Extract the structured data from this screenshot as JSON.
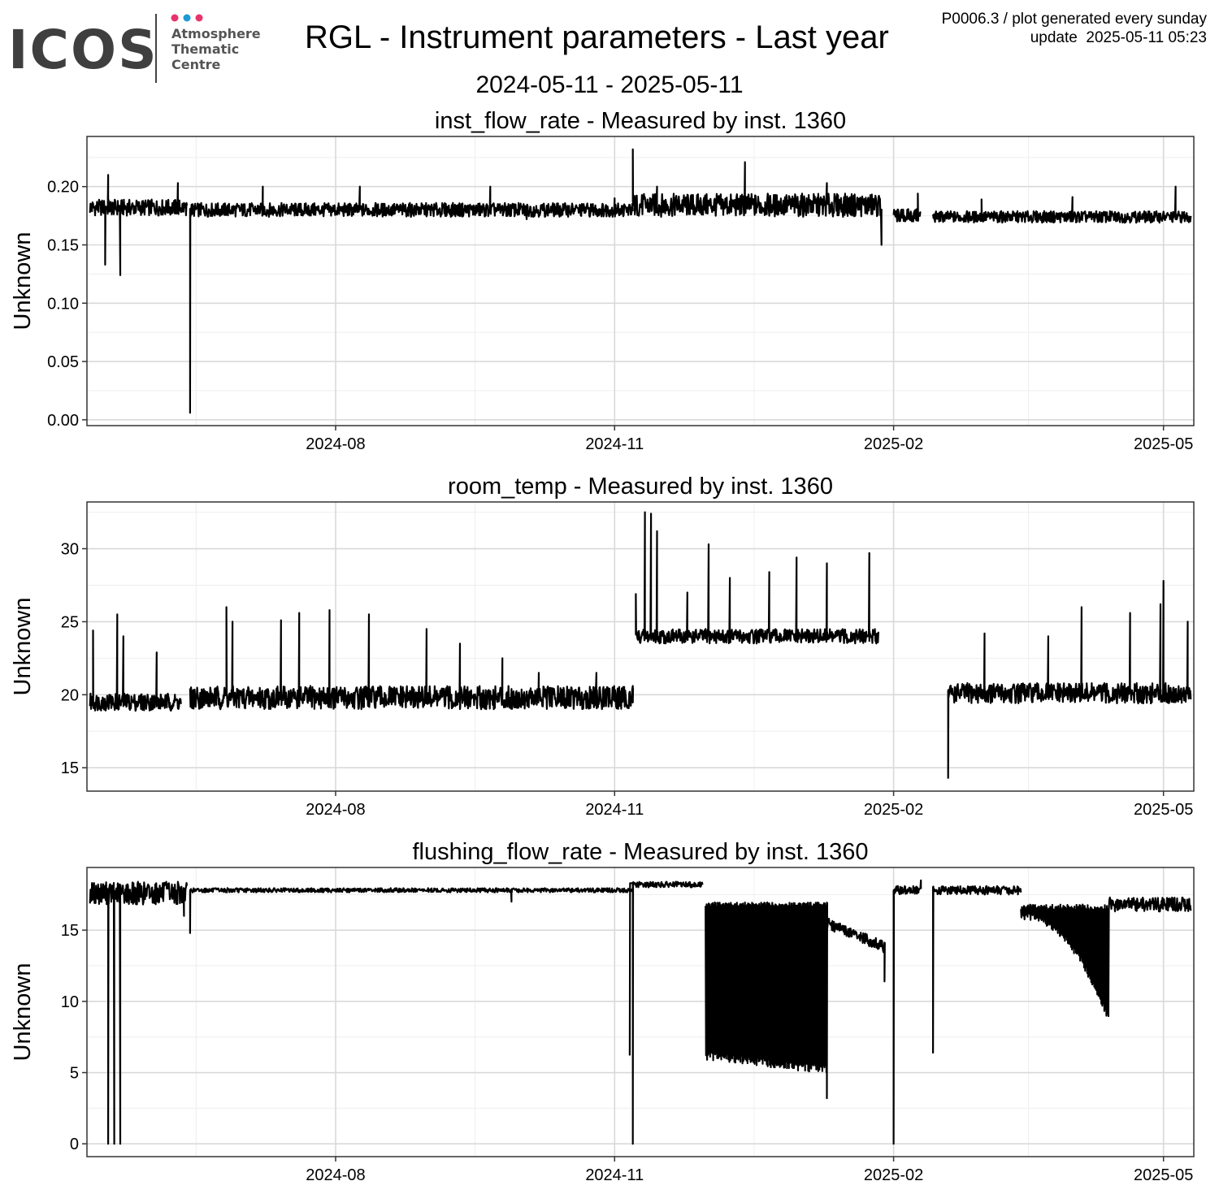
{
  "header": {
    "logo_word": "ICOS",
    "logo_lines": [
      "Atmosphere",
      "Thematic",
      "Centre"
    ],
    "title": "RGL - Instrument parameters - Last year",
    "date_range": "2024-05-11 - 2025-05-11",
    "meta_line1": "P0006.3 / plot generated every sunday",
    "meta_line2": "update  2025-05-11 05:23"
  },
  "colors": {
    "logo_dots": [
      "#e8336c",
      "#1d9ad6",
      "#e8336c"
    ],
    "line": "#000000",
    "panel_border": "#333333",
    "grid_major": "#d9d9d9",
    "grid_minor": "#eeeeee"
  },
  "chart_data": [
    {
      "type": "line",
      "title": "inst_flow_rate - Measured by inst. 1360",
      "xlabel": "",
      "ylabel": "Unknown",
      "xlim": [
        "2024-05-11",
        "2025-05-11"
      ],
      "ylim": [
        -0.005,
        0.243
      ],
      "yticks": [
        0.0,
        0.05,
        0.1,
        0.15,
        0.2
      ],
      "ytick_labels": [
        "0.00",
        "0.05",
        "0.10",
        "0.15",
        "0.20"
      ],
      "xticks": [
        "2024-08-01",
        "2024-11-01",
        "2025-02-01",
        "2025-05-01"
      ],
      "xtick_labels": [
        "2024-08",
        "2024-11",
        "2025-02",
        "2025-05"
      ],
      "grid": true,
      "series": [
        {
          "segments": [
            {
              "start": "2024-05-12",
              "end": "2024-06-13",
              "base": 0.182,
              "amp": 0.007,
              "spikes": [
                [
                  "2024-05-17",
                  0.133
                ],
                [
                  "2024-05-18",
                  0.21
                ],
                [
                  "2024-05-22",
                  0.124
                ],
                [
                  "2024-06-10",
                  0.203
                ]
              ]
            },
            {
              "start": "2024-06-14",
              "end": "2024-11-07",
              "base": 0.18,
              "amp": 0.006,
              "spikes": [
                [
                  "2024-06-14",
                  0.006
                ],
                [
                  "2024-07-08",
                  0.2
                ],
                [
                  "2024-08-09",
                  0.2
                ],
                [
                  "2024-09-21",
                  0.2
                ],
                [
                  "2024-10-03",
                  0.172
                ],
                [
                  "2024-11-01",
                  0.19
                ]
              ]
            },
            {
              "start": "2024-11-07",
              "end": "2025-01-28",
              "base": 0.184,
              "amp": 0.01,
              "spikes": [
                [
                  "2024-11-07",
                  0.232
                ],
                [
                  "2024-11-15",
                  0.2
                ],
                [
                  "2024-12-14",
                  0.221
                ],
                [
                  "2025-01-10",
                  0.203
                ],
                [
                  "2025-01-28",
                  0.15
                ]
              ]
            },
            {
              "start": "2025-02-01",
              "end": "2025-02-10",
              "base": 0.175,
              "amp": 0.006,
              "spikes": [
                [
                  "2025-02-09",
                  0.194
                ]
              ]
            },
            {
              "start": "2025-02-14",
              "end": "2025-05-10",
              "base": 0.174,
              "amp": 0.005,
              "spikes": [
                [
                  "2025-03-02",
                  0.189
                ],
                [
                  "2025-04-01",
                  0.191
                ],
                [
                  "2025-05-05",
                  0.2
                ]
              ]
            }
          ]
        }
      ]
    },
    {
      "type": "line",
      "title": "room_temp - Measured by inst. 1360",
      "xlabel": "",
      "ylabel": "Unknown",
      "xlim": [
        "2024-05-11",
        "2025-05-11"
      ],
      "ylim": [
        13.4,
        33.2
      ],
      "yticks": [
        15,
        20,
        25,
        30
      ],
      "ytick_labels": [
        "15",
        "20",
        "25",
        "30"
      ],
      "xticks": [
        "2024-08-01",
        "2024-11-01",
        "2025-02-01",
        "2025-05-01"
      ],
      "xtick_labels": [
        "2024-08",
        "2024-11",
        "2025-02",
        "2025-05"
      ],
      "grid": true,
      "series": [
        {
          "segments": [
            {
              "start": "2024-05-12",
              "end": "2024-06-11",
              "base": 19.5,
              "amp": 0.6,
              "spikes": [
                [
                  "2024-05-13",
                  24.4
                ],
                [
                  "2024-05-21",
                  25.5
                ],
                [
                  "2024-05-23",
                  24.0
                ],
                [
                  "2024-06-03",
                  22.9
                ]
              ]
            },
            {
              "start": "2024-06-14",
              "end": "2024-11-07",
              "base": 19.8,
              "amp": 0.8,
              "spikes": [
                [
                  "2024-06-26",
                  26.0
                ],
                [
                  "2024-06-28",
                  25.0
                ],
                [
                  "2024-07-14",
                  25.1
                ],
                [
                  "2024-07-20",
                  25.6
                ],
                [
                  "2024-07-30",
                  25.8
                ],
                [
                  "2024-08-12",
                  25.5
                ],
                [
                  "2024-08-31",
                  24.5
                ],
                [
                  "2024-09-11",
                  23.5
                ],
                [
                  "2024-09-25",
                  22.5
                ],
                [
                  "2024-10-07",
                  21.5
                ],
                [
                  "2024-10-26",
                  21.5
                ],
                [
                  "2024-11-07",
                  20.6
                ]
              ]
            },
            {
              "start": "2024-11-08",
              "end": "2025-01-27",
              "base": 24.0,
              "amp": 0.5,
              "spikes": [
                [
                  "2024-11-08",
                  26.9
                ],
                [
                  "2024-11-11",
                  32.5
                ],
                [
                  "2024-11-13",
                  32.4
                ],
                [
                  "2024-11-15",
                  31.2
                ],
                [
                  "2024-11-25",
                  27.0
                ],
                [
                  "2024-12-02",
                  30.3
                ],
                [
                  "2024-12-09",
                  28.0
                ],
                [
                  "2024-12-22",
                  28.4
                ],
                [
                  "2024-12-31",
                  29.4
                ],
                [
                  "2025-01-10",
                  29.0
                ],
                [
                  "2025-01-24",
                  29.7
                ]
              ]
            },
            {
              "start": "2025-02-19",
              "end": "2025-05-10",
              "base": 20.1,
              "amp": 0.7,
              "spikes": [
                [
                  "2025-02-19",
                  14.3
                ],
                [
                  "2025-03-03",
                  24.2
                ],
                [
                  "2025-03-24",
                  24.0
                ],
                [
                  "2025-04-04",
                  26.0
                ],
                [
                  "2025-04-20",
                  25.6
                ],
                [
                  "2025-04-30",
                  26.2
                ],
                [
                  "2025-05-01",
                  27.8
                ],
                [
                  "2025-05-09",
                  25.0
                ]
              ]
            }
          ]
        }
      ]
    },
    {
      "type": "line",
      "title": "flushing_flow_rate - Measured by inst. 1360",
      "xlabel": "",
      "ylabel": "Unknown",
      "xlim": [
        "2024-05-11",
        "2025-05-11"
      ],
      "ylim": [
        -0.9,
        19.4
      ],
      "yticks": [
        0,
        5,
        10,
        15
      ],
      "ytick_labels": [
        "0",
        "5",
        "10",
        "15"
      ],
      "xticks": [
        "2024-08-01",
        "2024-11-01",
        "2025-02-01",
        "2025-05-01"
      ],
      "xtick_labels": [
        "2024-08",
        "2024-11",
        "2025-02",
        "2025-05"
      ],
      "grid": true,
      "series": [
        {
          "segments": [
            {
              "start": "2024-05-12",
              "end": "2024-06-13",
              "base": 17.6,
              "amp": 0.8,
              "spikes": [
                [
                  "2024-05-18",
                  0.0
                ],
                [
                  "2024-05-20",
                  0.0
                ],
                [
                  "2024-05-22",
                  0.0
                ],
                [
                  "2024-06-12",
                  16.0
                ]
              ]
            },
            {
              "start": "2024-06-14",
              "end": "2024-11-07",
              "base": 17.8,
              "amp": 0.15,
              "spikes": [
                [
                  "2024-06-14",
                  14.8
                ],
                [
                  "2024-09-28",
                  17.0
                ]
              ]
            },
            {
              "start": "2024-11-07",
              "end": "2024-11-30",
              "base": 18.2,
              "amp": 0.2,
              "spikes": [
                [
                  "2024-11-07",
                  0.0
                ],
                [
                  "2024-11-06",
                  6.2
                ]
              ]
            },
            {
              "start": "2024-12-01",
              "end": "2025-01-10",
              "base": 16.8,
              "amp": 0.3,
              "band_low": [
                6.2,
                5.2
              ],
              "spikes": [
                [
                  "2025-01-10",
                  3.2
                ]
              ]
            },
            {
              "start": "2025-01-10",
              "end": "2025-01-29",
              "base": 15.5,
              "amp": 0.4,
              "trend_end": 13.8,
              "spikes": [
                [
                  "2025-01-29",
                  11.4
                ]
              ]
            },
            {
              "start": "2025-02-01",
              "end": "2025-02-10",
              "base": 17.8,
              "amp": 0.3,
              "spikes": [
                [
                  "2025-02-01",
                  0.0
                ],
                [
                  "2025-02-10",
                  18.5
                ]
              ]
            },
            {
              "start": "2025-02-14",
              "end": "2025-03-15",
              "base": 17.8,
              "amp": 0.3,
              "spikes": [
                [
                  "2025-02-14",
                  6.4
                ]
              ]
            },
            {
              "start": "2025-03-15",
              "end": "2025-04-13",
              "base": 16.6,
              "amp": 0.4,
              "band_low_curve": [
                16.0,
                8.7
              ]
            },
            {
              "start": "2025-04-13",
              "end": "2025-05-10",
              "base": 16.8,
              "amp": 0.5,
              "spikes": []
            }
          ]
        }
      ]
    }
  ]
}
